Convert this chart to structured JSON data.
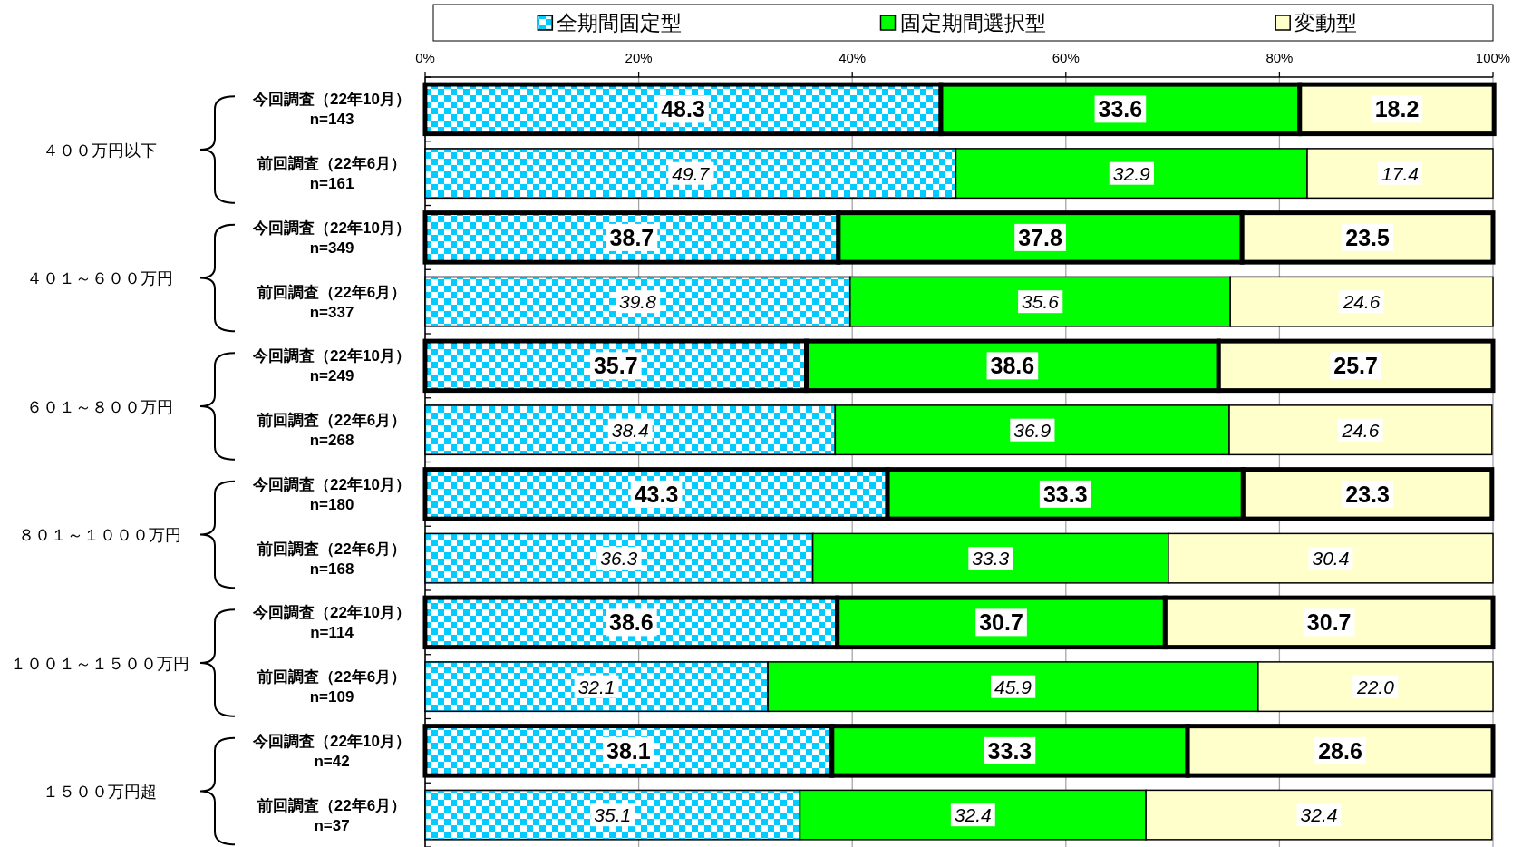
{
  "chart_data": {
    "type": "bar",
    "orientation": "horizontal",
    "stacked": true,
    "categories": [
      "今回調査（22年10月）\nn=143",
      "前回調査（22年6月）\nn=161",
      "今回調査（22年10月）\nn=349",
      "前回調査（22年6月）\nn=337",
      "今回調査（22年10月）\nn=249",
      "前回調査（22年6月）\nn=268",
      "今回調査（22年10月）\nn=180",
      "前回調査（22年6月）\nn=168",
      "今回調査（22年10月）\nn=114",
      "前回調査（22年6月）\nn=109",
      "今回調査（22年10月）\nn=42",
      "前回調査（22年6月）\nn=37"
    ],
    "series": [
      {
        "name": "全期間固定型",
        "color": "#00ccff",
        "values": [
          48.3,
          49.7,
          38.7,
          39.8,
          35.7,
          38.4,
          43.3,
          36.3,
          38.6,
          32.1,
          38.1,
          35.1
        ],
        "value_labels": [
          "48.3",
          "49.7",
          "38.7",
          "39.8",
          "35.7",
          "38.4",
          "43.3",
          "36.3",
          "38.6",
          "32.1",
          "38.1",
          "35.1"
        ]
      },
      {
        "name": "固定期間選択型",
        "color": "#00ff00",
        "values": [
          33.6,
          32.9,
          37.8,
          35.6,
          38.6,
          36.9,
          33.3,
          33.3,
          30.7,
          45.9,
          33.3,
          32.4
        ],
        "value_labels": [
          "33.6",
          "32.9",
          "37.8",
          "35.6",
          "38.6",
          "36.9",
          "33.3",
          "33.3",
          "30.7",
          "45.9",
          "33.3",
          "32.4"
        ]
      },
      {
        "name": "変動型",
        "color": "#ffffcc",
        "values": [
          18.2,
          17.4,
          23.5,
          24.6,
          25.7,
          24.6,
          23.3,
          30.4,
          30.7,
          22.0,
          28.6,
          32.4
        ],
        "value_labels": [
          "18.2",
          "17.4",
          "23.5",
          "24.6",
          "25.7",
          "24.6",
          "23.3",
          "30.4",
          "30.7",
          "22.0",
          "28.6",
          "32.4"
        ]
      }
    ],
    "xlim": [
      0,
      100
    ],
    "xticks": [
      {
        "value": 0,
        "label": "0%"
      },
      {
        "value": 20,
        "label": "20%"
      },
      {
        "value": 40,
        "label": "40%"
      },
      {
        "value": 60,
        "label": "60%"
      },
      {
        "value": 80,
        "label": "80%"
      },
      {
        "value": 100,
        "label": "100%"
      }
    ],
    "grid": "x",
    "legend": "top",
    "annotations": [
      "４００万円以下",
      "４０１～６００万円",
      "６０１～８００万円",
      "８０１～１０００万円",
      "１００１～１５００万円",
      "１５００万円超"
    ]
  }
}
